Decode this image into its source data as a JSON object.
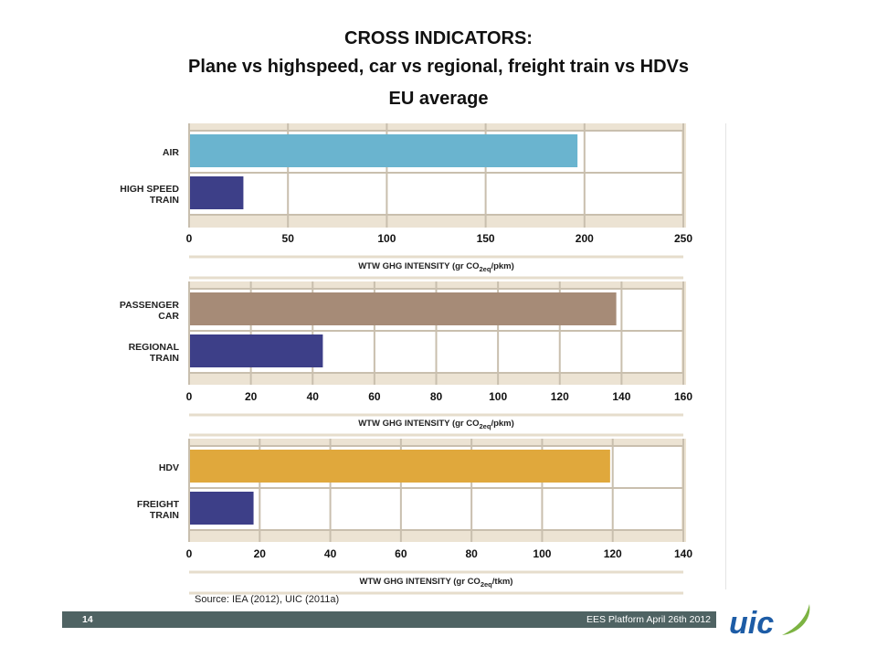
{
  "slide": {
    "title_line1": "CROSS INDICATORS:",
    "title_line2": "Plane vs highspeed, car vs regional, freight train vs HDVs",
    "subtitle": "EU average",
    "source": "Source: IEA (2012),  UIC  (2011a)",
    "page_number": "14",
    "footer": "EES Platform April  26th 2012",
    "logo_text": "uic"
  },
  "colors": {
    "chart_bg": "#ece3d3",
    "plot_bg": "#ffffff",
    "grid": "#c9bfae",
    "air": "#6ab4cf",
    "rail": "#3d3f88",
    "car": "#a68b77",
    "hdv": "#e0a83c",
    "footer": "#4f6363",
    "logo_blue": "#1d5ca6",
    "logo_green": "#7cb342"
  },
  "chart_data": [
    {
      "type": "bar",
      "orientation": "horizontal",
      "categories": [
        [
          "AIR"
        ],
        [
          "HIGH SPEED",
          "TRAIN"
        ]
      ],
      "values": [
        196,
        27
      ],
      "xlim": [
        0,
        250
      ],
      "ticks": [
        0,
        50,
        100,
        150,
        200,
        250
      ],
      "xlabel": "WTW GHG INTENSITY (gr CO2eq/pkm)",
      "xlabel_pre": "WTW GHG INTENSITY (gr CO",
      "xlabel_sub": "2eq",
      "xlabel_post": "/pkm)",
      "bar_colors": [
        "air",
        "rail"
      ]
    },
    {
      "type": "bar",
      "orientation": "horizontal",
      "categories": [
        [
          "PASSENGER",
          "CAR"
        ],
        [
          "REGIONAL",
          "TRAIN"
        ]
      ],
      "values": [
        138,
        43
      ],
      "xlim": [
        0,
        160
      ],
      "ticks": [
        0,
        20,
        40,
        60,
        80,
        100,
        120,
        140,
        160
      ],
      "xlabel": "WTW GHG INTENSITY (gr CO2eq/pkm)",
      "xlabel_pre": "WTW GHG INTENSITY (gr CO",
      "xlabel_sub": "2eq",
      "xlabel_post": "/pkm)",
      "bar_colors": [
        "car",
        "rail"
      ]
    },
    {
      "type": "bar",
      "orientation": "horizontal",
      "categories": [
        [
          "HDV"
        ],
        [
          "FREIGHT",
          "TRAIN"
        ]
      ],
      "values": [
        119,
        18
      ],
      "xlim": [
        0,
        140
      ],
      "ticks": [
        0,
        20,
        40,
        60,
        80,
        100,
        120,
        140
      ],
      "xlabel": "WTW GHG INTENSITY (gr CO2eq/tkm)",
      "xlabel_pre": "WTW GHG INTENSITY (gr CO",
      "xlabel_sub": "2eq",
      "xlabel_post": "/tkm)",
      "bar_colors": [
        "hdv",
        "rail"
      ]
    }
  ]
}
